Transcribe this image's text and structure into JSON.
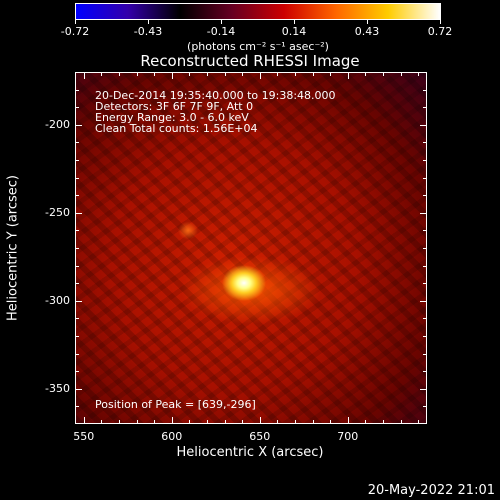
{
  "colorbar": {
    "tick_labels": [
      "-0.72",
      "-0.43",
      "-0.14",
      "0.14",
      "0.43",
      "0.72"
    ],
    "units": "(photons cm⁻² s⁻¹ asec⁻²)",
    "min": -0.72,
    "max": 0.72,
    "colors": [
      "#0000ff",
      "#3300aa",
      "#000000",
      "#660022",
      "#cc0000",
      "#ff6600",
      "#ffcc00",
      "#ffffff"
    ]
  },
  "title": "Reconstructed RHESSI Image",
  "info_lines": [
    "20-Dec-2014 19:35:40.000 to 19:38:48.000",
    "Detectors: 3F 6F 7F 9F, Att 0",
    "Energy Range: 3.0 - 6.0 keV",
    "Clean     Total counts: 1.56E+04"
  ],
  "peak_label": "Position of Peak = [639,-296]",
  "x_axis": {
    "label": "Heliocentric X (arcsec)",
    "tick_labels": [
      "550",
      "600",
      "650",
      "700"
    ],
    "range": [
      545,
      745
    ]
  },
  "y_axis": {
    "label": "Heliocentric Y (arcsec)",
    "tick_labels": [
      "-200",
      "-250",
      "-300",
      "-350"
    ],
    "range": [
      -370,
      -170
    ]
  },
  "timestamp": "20-May-2022 21:01"
}
